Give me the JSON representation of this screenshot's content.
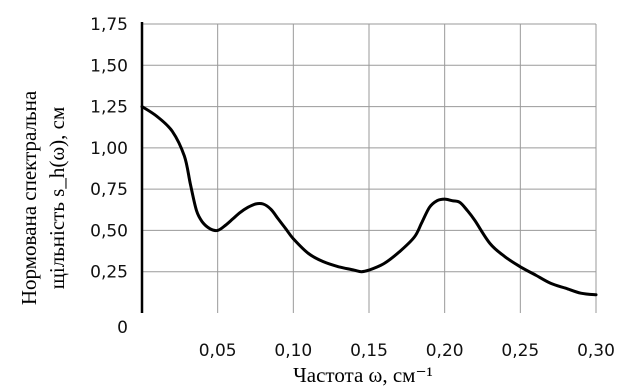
{
  "chart_data": {
    "type": "line",
    "xlabel": "Частота ω, см⁻¹",
    "ylabel_line1": "Нормована спектральна",
    "ylabel_line2": "щільність s_h(ω), см",
    "xlim": [
      0,
      0.3
    ],
    "ylim": [
      0,
      1.75
    ],
    "x_ticks": [
      "0,05",
      "0,10",
      "0,15",
      "0,20",
      "0,25",
      "0,30"
    ],
    "y_ticks": [
      "0",
      "0,25",
      "0,50",
      "0,75",
      "1,00",
      "1,25",
      "1,50",
      "1,75"
    ],
    "grid": true,
    "series": [
      {
        "x": [
          0,
          0.01,
          0.02,
          0.028,
          0.032,
          0.036,
          0.04,
          0.045,
          0.05,
          0.055,
          0.06,
          0.065,
          0.07,
          0.075,
          0.08,
          0.085,
          0.09,
          0.095,
          0.1,
          0.11,
          0.12,
          0.13,
          0.14,
          0.145,
          0.15,
          0.16,
          0.17,
          0.18,
          0.185,
          0.19,
          0.195,
          0.2,
          0.205,
          0.21,
          0.215,
          0.22,
          0.23,
          0.24,
          0.25,
          0.26,
          0.27,
          0.28,
          0.29,
          0.3
        ],
        "y": [
          1.25,
          1.19,
          1.1,
          0.95,
          0.78,
          0.62,
          0.55,
          0.51,
          0.5,
          0.53,
          0.57,
          0.61,
          0.64,
          0.66,
          0.66,
          0.63,
          0.57,
          0.51,
          0.45,
          0.36,
          0.31,
          0.28,
          0.26,
          0.25,
          0.26,
          0.3,
          0.37,
          0.46,
          0.55,
          0.64,
          0.68,
          0.69,
          0.68,
          0.67,
          0.62,
          0.56,
          0.42,
          0.34,
          0.28,
          0.23,
          0.18,
          0.15,
          0.12,
          0.11
        ]
      }
    ]
  }
}
